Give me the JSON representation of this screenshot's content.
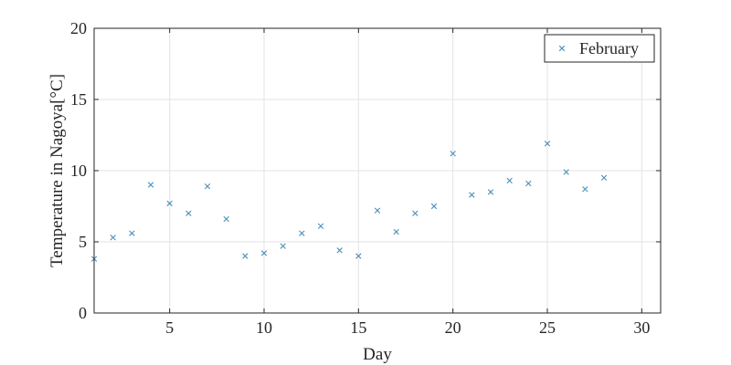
{
  "chart_data": {
    "type": "scatter",
    "title": "",
    "xlabel": "Day",
    "ylabel": "Temperature in Nagoya[°C]",
    "xlim": [
      1,
      31
    ],
    "ylim": [
      0,
      20
    ],
    "xticks": [
      5,
      10,
      15,
      20,
      25,
      30
    ],
    "yticks": [
      0,
      5,
      10,
      15,
      20
    ],
    "grid": true,
    "legend_position": "top-right",
    "marker": "x",
    "series": [
      {
        "name": "February",
        "color": "#4a90b8",
        "x": [
          1,
          2,
          3,
          4,
          5,
          6,
          7,
          8,
          9,
          10,
          11,
          12,
          13,
          14,
          15,
          16,
          17,
          18,
          19,
          20,
          21,
          22,
          23,
          24,
          25,
          26,
          27,
          28
        ],
        "y": [
          3.8,
          5.3,
          5.6,
          9.0,
          7.7,
          7.0,
          8.9,
          6.6,
          4.0,
          4.2,
          4.7,
          5.6,
          6.1,
          4.4,
          4.0,
          7.2,
          5.7,
          7.0,
          7.5,
          11.2,
          8.3,
          8.5,
          9.3,
          9.1,
          11.9,
          9.9,
          8.7,
          9.5
        ]
      }
    ]
  }
}
